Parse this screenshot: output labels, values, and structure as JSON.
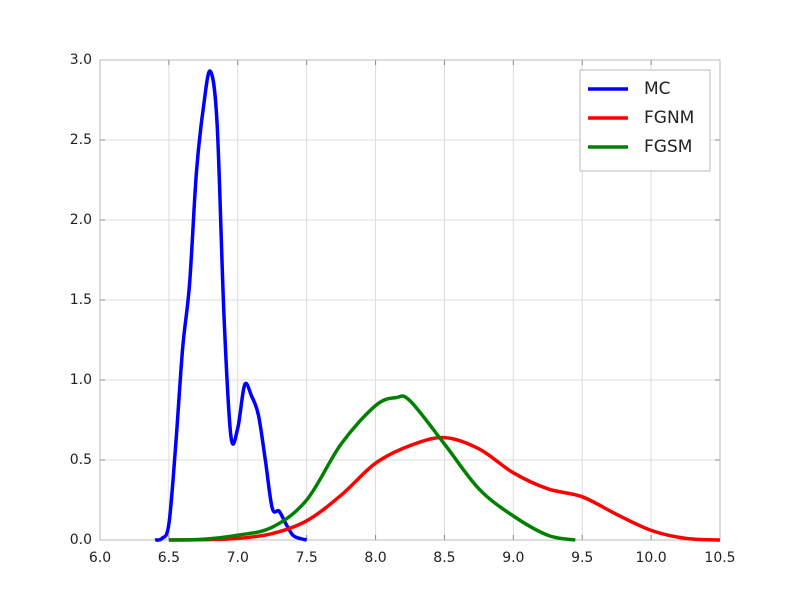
{
  "chart_data": {
    "type": "line",
    "series": [
      {
        "name": "MC",
        "color": "#0000ff",
        "x": [
          6.4,
          6.45,
          6.5,
          6.55,
          6.6,
          6.65,
          6.7,
          6.75,
          6.8,
          6.85,
          6.9,
          6.95,
          7.0,
          7.05,
          7.1,
          7.15,
          7.2,
          7.25,
          7.3,
          7.35,
          7.4,
          7.45,
          7.5
        ],
        "values": [
          0,
          0.01,
          0.1,
          0.6,
          1.2,
          1.6,
          2.3,
          2.7,
          2.93,
          2.6,
          1.4,
          0.65,
          0.7,
          0.97,
          0.9,
          0.78,
          0.5,
          0.2,
          0.18,
          0.1,
          0.03,
          0.01,
          0
        ]
      },
      {
        "name": "FGNM",
        "color": "#ff0000",
        "x": [
          6.5,
          6.75,
          7.0,
          7.25,
          7.5,
          7.75,
          8.0,
          8.25,
          8.5,
          8.75,
          9.0,
          9.25,
          9.5,
          9.75,
          10.0,
          10.25,
          10.5
        ],
        "values": [
          0,
          0.002,
          0.01,
          0.04,
          0.12,
          0.28,
          0.48,
          0.59,
          0.64,
          0.57,
          0.42,
          0.32,
          0.27,
          0.16,
          0.06,
          0.01,
          0
        ]
      },
      {
        "name": "FGSM",
        "color": "#008000",
        "x": [
          6.5,
          6.75,
          7.0,
          7.25,
          7.5,
          7.75,
          8.0,
          8.15,
          8.25,
          8.5,
          8.75,
          9.0,
          9.25,
          9.45
        ],
        "values": [
          0,
          0.005,
          0.03,
          0.08,
          0.25,
          0.6,
          0.84,
          0.89,
          0.87,
          0.6,
          0.32,
          0.15,
          0.03,
          0
        ]
      }
    ],
    "xlim": [
      6.0,
      10.5
    ],
    "xticks": [
      {
        "value": 6,
        "label": "6.0"
      },
      6.5,
      {
        "value": 7,
        "label": "7.0"
      },
      7.5,
      {
        "value": 8,
        "label": "8.0"
      },
      8.5,
      {
        "value": 9,
        "label": "9.0"
      },
      9.5,
      {
        "value": 10,
        "label": "10.0"
      },
      10.5
    ],
    "ylim": [
      0,
      3.0
    ],
    "yticks": [
      {
        "value": 0,
        "label": "0.0"
      },
      0.5,
      {
        "value": 1,
        "label": "1.0"
      },
      1.5,
      {
        "value": 2,
        "label": "2.0"
      },
      2.5,
      {
        "value": 3,
        "label": "3.0"
      }
    ],
    "grid": true,
    "legend": "upper-right"
  }
}
